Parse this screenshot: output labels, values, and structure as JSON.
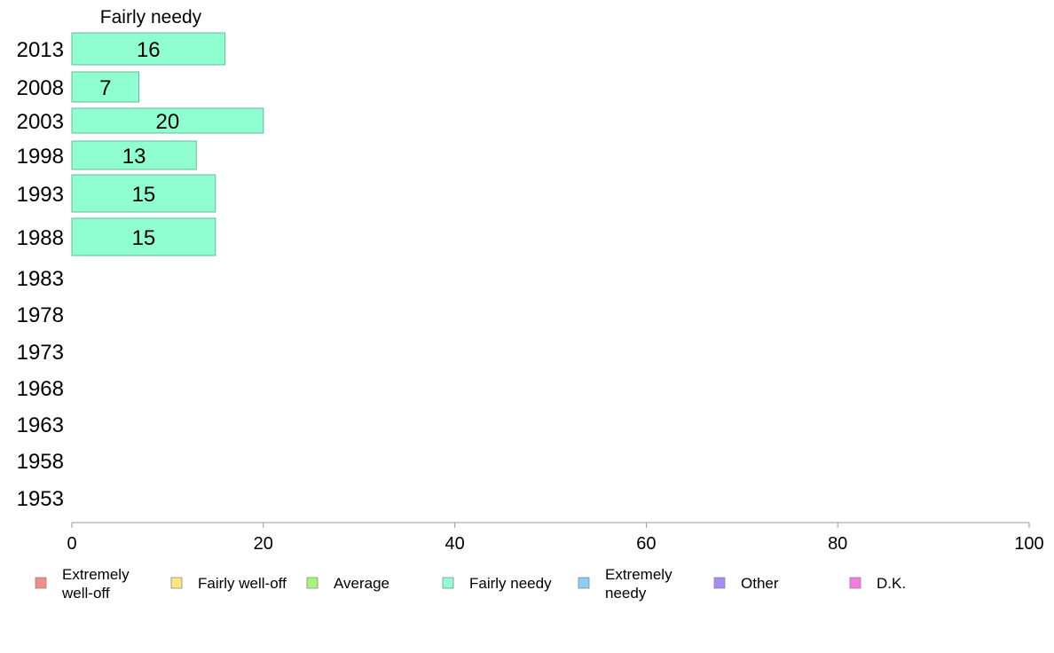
{
  "chart_data": {
    "type": "bar",
    "orientation": "horizontal",
    "title": "Fairly needy",
    "categories": [
      "2013",
      "2008",
      "2003",
      "1998",
      "1993",
      "1988",
      "1983",
      "1978",
      "1973",
      "1968",
      "1963",
      "1958",
      "1953"
    ],
    "series": [
      {
        "name": "Fairly needy",
        "color": "#8fffd2",
        "values": [
          16,
          7,
          20,
          13,
          15,
          15,
          null,
          null,
          null,
          null,
          null,
          null,
          null
        ]
      }
    ],
    "bar_labels": [
      "16",
      "7",
      "20",
      "13",
      "15",
      "15",
      "",
      "",
      "",
      "",
      "",
      "",
      ""
    ],
    "xlim": [
      0,
      100
    ],
    "xticks": [
      0,
      20,
      40,
      60,
      80,
      100
    ],
    "xtick_labels": [
      "0",
      "20",
      "40",
      "60",
      "80",
      "100"
    ],
    "grid": false,
    "legend_position": "bottom",
    "legend": [
      {
        "lines": [
          "Extremely",
          "well-off"
        ],
        "color": "#f48a8a"
      },
      {
        "lines": [
          "Fairly well-off"
        ],
        "color": "#ffe680"
      },
      {
        "lines": [
          "Average"
        ],
        "color": "#a6f57a"
      },
      {
        "lines": [
          "Fairly needy"
        ],
        "color": "#8fffd2"
      },
      {
        "lines": [
          "Extremely",
          "needy"
        ],
        "color": "#8ccdf5"
      },
      {
        "lines": [
          "Other"
        ],
        "color": "#a68cf5"
      },
      {
        "lines": [
          "D.K."
        ],
        "color": "#f57ae6"
      }
    ]
  }
}
